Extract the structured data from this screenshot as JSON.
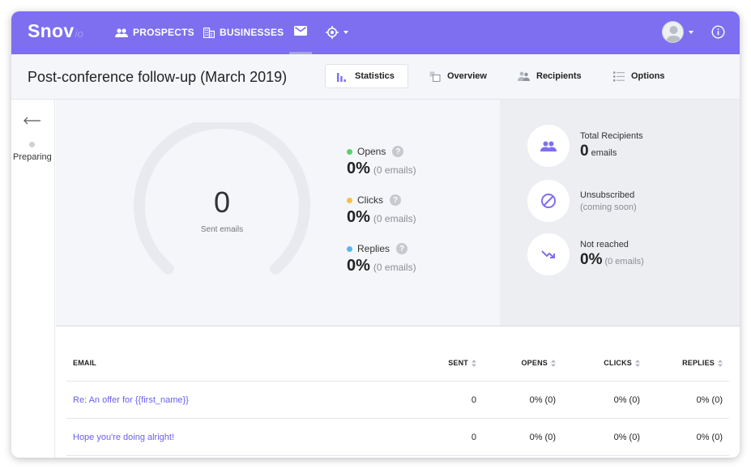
{
  "nav": {
    "logo_main": "Snov",
    "logo_suffix": "io",
    "prospects": "PROSPECTS",
    "businesses": "BUSINESSES"
  },
  "header": {
    "title": "Post-conference follow-up (March 2019)",
    "tabs": [
      {
        "label": "Statistics",
        "active": true
      },
      {
        "label": "Overview"
      },
      {
        "label": "Recipients"
      },
      {
        "label": "Options"
      }
    ]
  },
  "rail": {
    "status": "Preparing"
  },
  "gauge": {
    "value": "0",
    "label": "Sent emails"
  },
  "metrics": [
    {
      "label": "Opens",
      "percent": "0%",
      "sub": "(0 emails)",
      "color": "#5ccf6c"
    },
    {
      "label": "Clicks",
      "percent": "0%",
      "sub": "(0 emails)",
      "color": "#f5c04a"
    },
    {
      "label": "Replies",
      "percent": "0%",
      "sub": "(0 emails)",
      "color": "#58b7e8"
    }
  ],
  "summary": {
    "total_label": "Total Recipients",
    "total_value": "0",
    "total_unit": "emails",
    "unsub_label": "Unsubscribed",
    "unsub_note": "(coming soon)",
    "notreached_label": "Not reached",
    "notreached_value": "0%",
    "notreached_unit": "(0 emails)"
  },
  "table": {
    "columns": [
      "EMAIL",
      "SENT",
      "OPENS",
      "CLICKS",
      "REPLIES"
    ],
    "rows": [
      {
        "subject": "Re: An offer for {{first_name}}",
        "sent": "0",
        "opens": "0% (0)",
        "clicks": "0% (0)",
        "replies": "0% (0)"
      },
      {
        "subject": "Hope you're doing alright!",
        "sent": "0",
        "opens": "0% (0)",
        "clicks": "0% (0)",
        "replies": "0% (0)"
      }
    ]
  },
  "colors": {
    "accent": "#7d6ff0",
    "link": "#6b5ff0",
    "icon_accent": "#7d6ff0"
  }
}
